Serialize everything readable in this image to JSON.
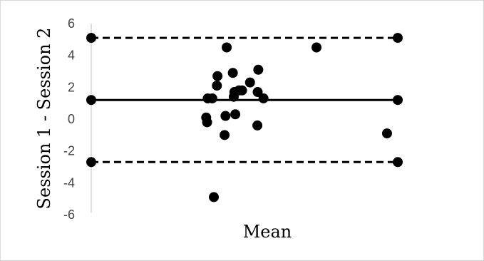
{
  "chart_data": {
    "type": "scatter",
    "title": "",
    "xlabel": "Mean",
    "ylabel": "Session 1 - Session 2",
    "xlim": [
      0,
      100
    ],
    "ylim": [
      -6,
      6
    ],
    "y_ticks": [
      6,
      4,
      2,
      0,
      -2,
      -4,
      -6
    ],
    "x_ticks": [],
    "grid": false,
    "legend": "none",
    "colors": {
      "points": "#000000",
      "lines": "#000000",
      "axis": "#bfbfbf",
      "tick_labels": "#444444"
    },
    "series": [
      {
        "values": [
          [
            37.5,
            0.1
          ],
          [
            37.8,
            -0.2
          ],
          [
            38.0,
            1.3
          ],
          [
            39.5,
            1.3
          ],
          [
            40.0,
            -4.9
          ],
          [
            41.0,
            2.1
          ],
          [
            41.2,
            2.7
          ],
          [
            43.5,
            -1.0
          ],
          [
            43.8,
            0.2
          ],
          [
            44.2,
            4.5
          ],
          [
            46.2,
            2.9
          ],
          [
            46.5,
            1.4
          ],
          [
            46.7,
            1.7
          ],
          [
            47.0,
            0.3
          ],
          [
            48.2,
            1.8
          ],
          [
            49.2,
            1.8
          ],
          [
            51.8,
            2.3
          ],
          [
            54.2,
            -0.4
          ],
          [
            54.3,
            1.7
          ],
          [
            54.5,
            3.1
          ],
          [
            56.2,
            1.3
          ],
          [
            73.5,
            4.5
          ],
          [
            96.5,
            -0.9
          ]
        ]
      }
    ],
    "reference_lines": [
      {
        "kind": "mean",
        "y": 1.2,
        "style": "solid"
      },
      {
        "kind": "upper-limit",
        "y": 5.1,
        "style": "dashed"
      },
      {
        "kind": "lower-limit",
        "y": -2.7,
        "style": "dashed"
      }
    ]
  }
}
